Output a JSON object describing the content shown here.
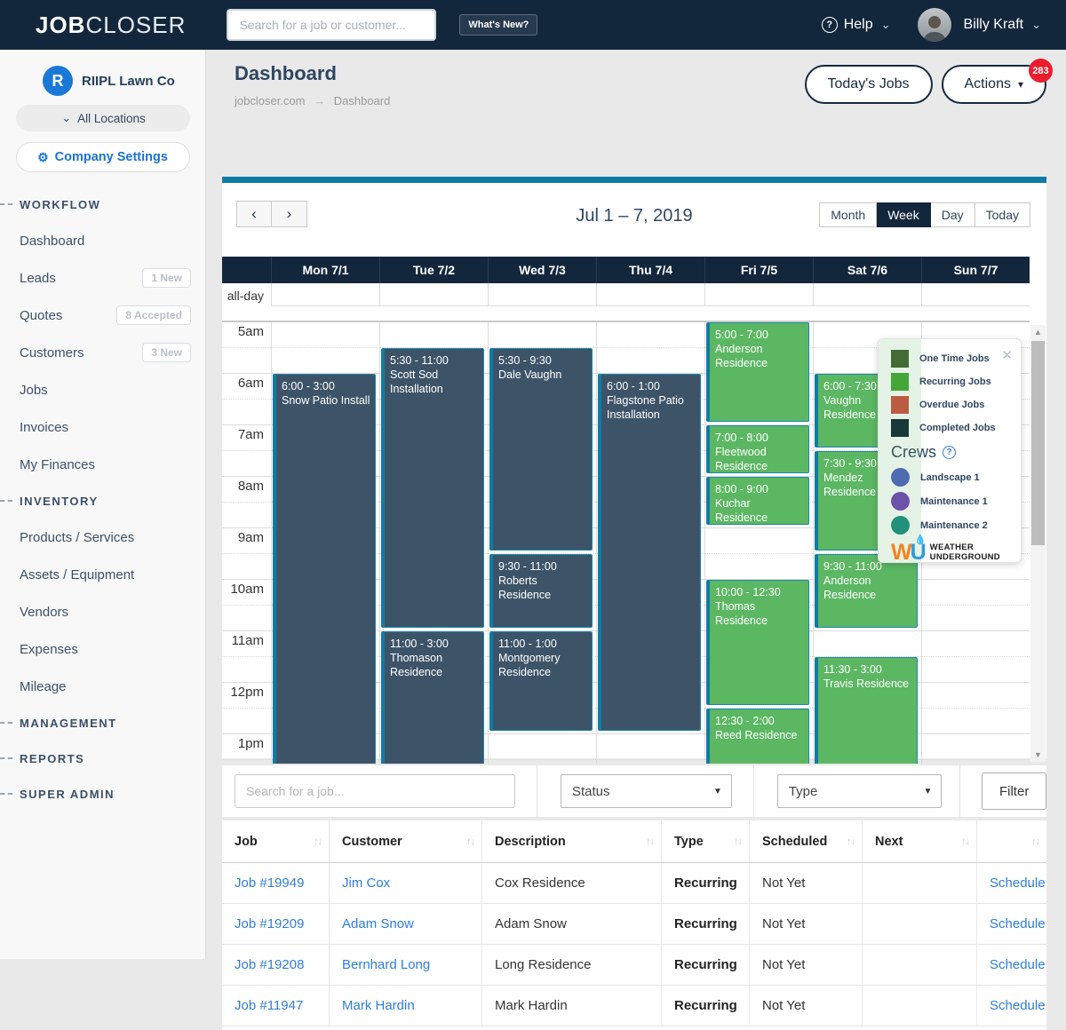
{
  "navbar": {
    "logo_bold": "JOB",
    "logo_light": "CLOSER",
    "search_placeholder": "Search for a job or customer...",
    "whats_new": "What's New?",
    "help": "Help",
    "user": "Billy Kraft"
  },
  "sidebar": {
    "company_initial": "R",
    "company": "RIIPL Lawn Co",
    "locations": "All Locations",
    "settings": "Company Settings",
    "sections": [
      {
        "label": "WORKFLOW",
        "items": [
          {
            "label": "Dashboard",
            "badge": ""
          },
          {
            "label": "Leads",
            "badge": "1 New"
          },
          {
            "label": "Quotes",
            "badge": "8 Accepted"
          },
          {
            "label": "Customers",
            "badge": "3 New"
          },
          {
            "label": "Jobs",
            "badge": ""
          },
          {
            "label": "Invoices",
            "badge": ""
          },
          {
            "label": "My Finances",
            "badge": ""
          }
        ]
      },
      {
        "label": "INVENTORY",
        "items": [
          {
            "label": "Products / Services",
            "badge": ""
          },
          {
            "label": "Assets / Equipment",
            "badge": ""
          },
          {
            "label": "Vendors",
            "badge": ""
          },
          {
            "label": "Expenses",
            "badge": ""
          },
          {
            "label": "Mileage",
            "badge": ""
          }
        ]
      },
      {
        "label": "MANAGEMENT",
        "items": []
      },
      {
        "label": "REPORTS",
        "items": []
      },
      {
        "label": "SUPER ADMIN",
        "items": []
      }
    ]
  },
  "header": {
    "title": "Dashboard",
    "breadcrumb_root": "jobcloser.com",
    "breadcrumb_page": "Dashboard",
    "todays_jobs": "Today's Jobs",
    "actions": "Actions",
    "actions_badge": "283"
  },
  "calendar": {
    "title": "Jul 1 – 7, 2019",
    "views": [
      "Month",
      "Week",
      "Day",
      "Today"
    ],
    "active_view": "Week",
    "all_day_label": "all-day",
    "days": [
      "Mon 7/1",
      "Tue 7/2",
      "Wed 7/3",
      "Thu 7/4",
      "Fri 7/5",
      "Sat 7/6",
      "Sun 7/7"
    ],
    "hours": [
      "5am",
      "6am",
      "7am",
      "8am",
      "9am",
      "10am",
      "11am",
      "12pm",
      "1pm"
    ],
    "events": [
      {
        "day": 0,
        "time": "6:00 - 3:00",
        "title": "Snow Patio Install",
        "start": 6,
        "end": 15,
        "kind": "onetime"
      },
      {
        "day": 1,
        "time": "5:30 - 11:00",
        "title": "Scott Sod Installation",
        "start": 5.5,
        "end": 11,
        "kind": "onetime"
      },
      {
        "day": 1,
        "time": "11:00 - 3:00",
        "title": "Thomason Residence",
        "start": 11,
        "end": 15,
        "kind": "onetime"
      },
      {
        "day": 2,
        "time": "5:30 - 9:30",
        "title": "Dale Vaughn",
        "start": 5.5,
        "end": 9.5,
        "kind": "onetime"
      },
      {
        "day": 2,
        "time": "9:30 - 11:00",
        "title": "Roberts Residence",
        "start": 9.5,
        "end": 11,
        "kind": "onetime"
      },
      {
        "day": 2,
        "time": "11:00 - 1:00",
        "title": "Montgomery Residence",
        "start": 11,
        "end": 13,
        "kind": "onetime"
      },
      {
        "day": 3,
        "time": "6:00 - 1:00",
        "title": "Flagstone Patio Installation",
        "start": 6,
        "end": 13,
        "kind": "onetime"
      },
      {
        "day": 4,
        "time": "5:00 - 7:00",
        "title": "Anderson Residence",
        "start": 5,
        "end": 7,
        "kind": "recurring"
      },
      {
        "day": 4,
        "time": "7:00 - 8:00",
        "title": "Fleetwood Residence",
        "start": 7,
        "end": 8,
        "kind": "recurring"
      },
      {
        "day": 4,
        "time": "8:00 - 9:00",
        "title": "Kuchar Residence",
        "start": 8,
        "end": 9,
        "kind": "recurring"
      },
      {
        "day": 4,
        "time": "10:00 - 12:30",
        "title": "Thomas Residence",
        "start": 10,
        "end": 12.5,
        "kind": "recurring"
      },
      {
        "day": 4,
        "time": "12:30 - 2:00",
        "title": "Reed Residence",
        "start": 12.5,
        "end": 14,
        "kind": "recurring"
      },
      {
        "day": 5,
        "time": "6:00 - 7:30",
        "title": "Vaughn Residence",
        "start": 6,
        "end": 7.5,
        "kind": "recurring"
      },
      {
        "day": 5,
        "time": "7:30 - 9:30",
        "title": "Mendez Residence",
        "start": 7.5,
        "end": 9.5,
        "kind": "recurring"
      },
      {
        "day": 5,
        "time": "9:30 - 11:00",
        "title": "Anderson Residence",
        "start": 9.5,
        "end": 11,
        "kind": "recurring"
      },
      {
        "day": 5,
        "time": "11:30 - 3:00",
        "title": "Travis Residence",
        "start": 11.5,
        "end": 15,
        "kind": "recurring"
      }
    ]
  },
  "legend": {
    "job_types": [
      {
        "label": "One Time Jobs",
        "color": "#3e5e2d"
      },
      {
        "label": "Recurring Jobs",
        "color": "#3ea431"
      },
      {
        "label": "Overdue Jobs",
        "color": "#cd4c3c"
      },
      {
        "label": "Completed Jobs",
        "color": "#0d2133"
      }
    ],
    "crews_title": "Crews",
    "crews": [
      {
        "label": "Landscape 1",
        "color": "#4a5fc1"
      },
      {
        "label": "Maintenance 1",
        "color": "#7040b8"
      },
      {
        "label": "Maintenance 2",
        "color": "#17897f"
      }
    ],
    "wu_letter_w": "W",
    "wu_letter_u": "U",
    "wu_line1": "WEATHER",
    "wu_line2": "UNDERGROUND"
  },
  "filters": {
    "search_placeholder": "Search for a job...",
    "status": "Status",
    "type": "Type",
    "filter": "Filter"
  },
  "table": {
    "columns": [
      "Job",
      "Customer",
      "Description",
      "Type",
      "Scheduled",
      "Next",
      ""
    ],
    "rows": [
      {
        "job": "Job #19949",
        "customer": "Jim Cox",
        "description": "Cox Residence",
        "type": "Recurring",
        "scheduled": "Not Yet",
        "next": "",
        "action": "Schedule"
      },
      {
        "job": "Job #19209",
        "customer": "Adam Snow",
        "description": "Adam Snow",
        "type": "Recurring",
        "scheduled": "Not Yet",
        "next": "",
        "action": "Schedule"
      },
      {
        "job": "Job #19208",
        "customer": "Bernhard Long",
        "description": "Long Residence",
        "type": "Recurring",
        "scheduled": "Not Yet",
        "next": "",
        "action": "Schedule"
      },
      {
        "job": "Job #11947",
        "customer": "Mark Hardin",
        "description": "Mark Hardin",
        "type": "Recurring",
        "scheduled": "Not Yet",
        "next": "",
        "action": "Schedule"
      }
    ]
  },
  "colors": {
    "navbar": "#13273c",
    "accent_teal": "#0f7ca3",
    "event_onetime": "#3d5468",
    "event_recurring": "#5cb763",
    "badge_red": "#ec1c2e",
    "link_blue": "#2e7fd6"
  }
}
